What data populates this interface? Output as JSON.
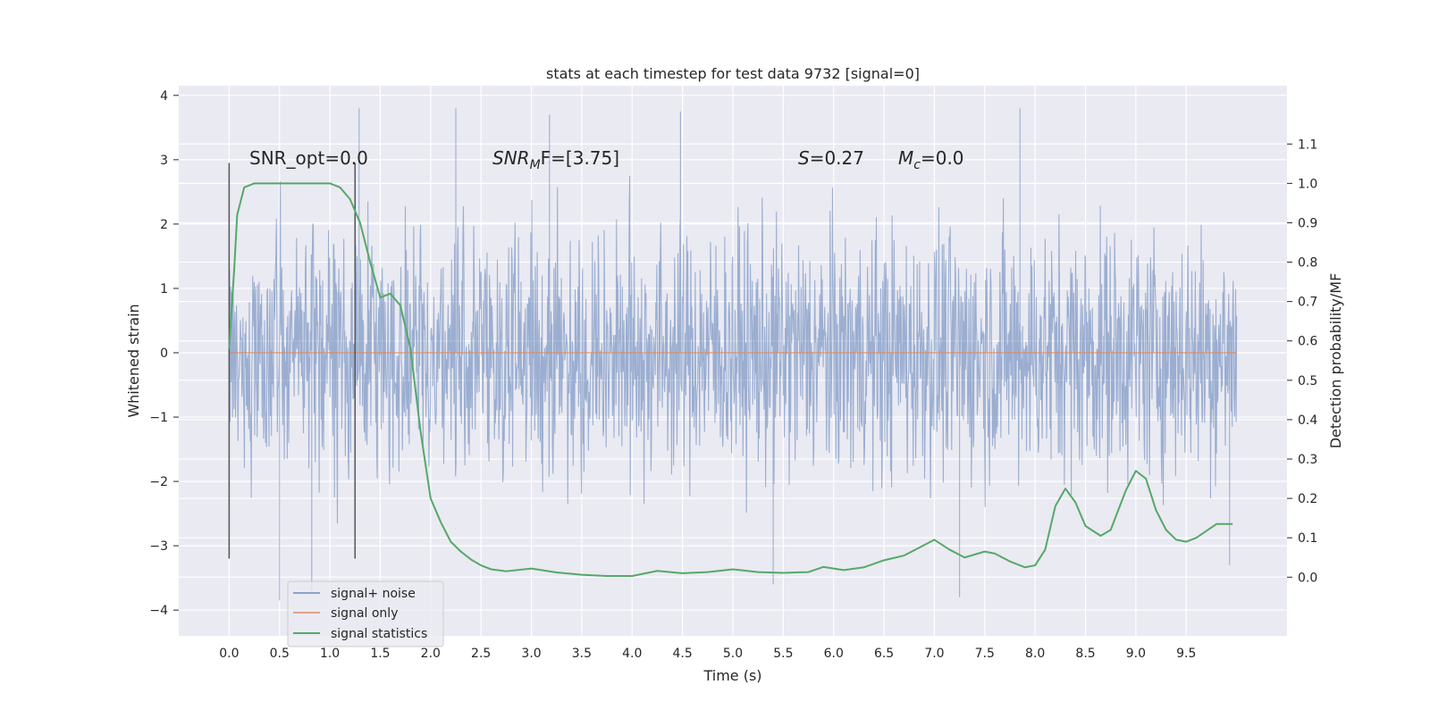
{
  "chart_data": {
    "type": "line",
    "title": "stats at each timestep for test data 9732 [signal=0]",
    "xlabel": "Time (s)",
    "ylabel": "Whitened strain",
    "y2label": "Detection probability/MF",
    "xlim": [
      -0.5,
      10.5
    ],
    "ylim": [
      -4.4,
      4.15
    ],
    "y2lim": [
      -0.149,
      1.248
    ],
    "x_ticks": [
      "0.0",
      "0.5",
      "1.0",
      "1.5",
      "2.0",
      "2.5",
      "3.0",
      "3.5",
      "4.0",
      "4.5",
      "5.0",
      "5.5",
      "6.0",
      "6.5",
      "7.0",
      "7.5",
      "8.0",
      "8.5",
      "9.0",
      "9.5"
    ],
    "y_ticks": [
      "4",
      "3",
      "2",
      "1",
      "0",
      "−1",
      "−2",
      "−3",
      "−4"
    ],
    "y2_ticks": [
      "1.1",
      "1.0",
      "0.9",
      "0.8",
      "0.7",
      "0.6",
      "0.5",
      "0.4",
      "0.3",
      "0.2",
      "0.1",
      "0.0"
    ],
    "grid": true,
    "legend_position": "lower-left",
    "annotations": {
      "snr_opt": "SNR_opt=0.0",
      "snr_mf_prefix": "SNR",
      "snr_mf_sub": "M",
      "snr_mf_suffix": "F=[3.75]",
      "s_prefix": "S",
      "s_value": "=0.27",
      "mc_prefix": "M",
      "mc_sub": "c",
      "mc_value": "=0.0"
    },
    "vlines_x": [
      0.0,
      1.25
    ],
    "series": [
      {
        "name": "signal+ noise",
        "color": "#4c72b0",
        "x_range": [
          0.0,
          10.0
        ],
        "samples": 2048,
        "y_max": 3.8,
        "y_min": -3.8,
        "peaks": [
          [
            0.5,
            -3.85
          ],
          [
            0.82,
            -3.7
          ],
          [
            1.29,
            3.8
          ],
          [
            2.25,
            3.8
          ],
          [
            3.18,
            3.7
          ],
          [
            4.48,
            3.75
          ],
          [
            7.85,
            3.8
          ],
          [
            9.93,
            -3.3
          ],
          [
            7.25,
            -3.8
          ],
          [
            5.4,
            -3.6
          ]
        ]
      },
      {
        "name": "signal only",
        "color": "#dd8452",
        "x": [
          0.0,
          10.0
        ],
        "y": [
          0.0,
          0.0
        ]
      },
      {
        "name": "signal statistics",
        "color": "#55a868",
        "axis": "right",
        "x": [
          0.0,
          0.05,
          0.08,
          0.15,
          0.25,
          0.4,
          0.6,
          0.8,
          1.0,
          1.1,
          1.2,
          1.3,
          1.4,
          1.5,
          1.6,
          1.7,
          1.8,
          1.9,
          2.0,
          2.1,
          2.2,
          2.3,
          2.4,
          2.5,
          2.6,
          2.75,
          3.0,
          3.25,
          3.5,
          3.75,
          4.0,
          4.25,
          4.5,
          4.75,
          5.0,
          5.25,
          5.5,
          5.75,
          5.9,
          6.1,
          6.3,
          6.5,
          6.7,
          6.85,
          7.0,
          7.15,
          7.3,
          7.5,
          7.6,
          7.75,
          7.9,
          8.0,
          8.1,
          8.2,
          8.3,
          8.4,
          8.5,
          8.65,
          8.75,
          8.9,
          9.0,
          9.1,
          9.2,
          9.3,
          9.4,
          9.5,
          9.6,
          9.8,
          9.96
        ],
        "y": [
          0.58,
          0.78,
          0.92,
          0.99,
          1.0,
          1.0,
          1.0,
          1.0,
          1.0,
          0.99,
          0.96,
          0.9,
          0.8,
          0.71,
          0.72,
          0.69,
          0.58,
          0.37,
          0.2,
          0.14,
          0.09,
          0.065,
          0.045,
          0.03,
          0.02,
          0.015,
          0.022,
          0.012,
          0.006,
          0.003,
          0.003,
          0.016,
          0.01,
          0.013,
          0.02,
          0.013,
          0.011,
          0.013,
          0.026,
          0.018,
          0.025,
          0.043,
          0.055,
          0.075,
          0.095,
          0.07,
          0.05,
          0.065,
          0.06,
          0.04,
          0.025,
          0.03,
          0.07,
          0.18,
          0.225,
          0.19,
          0.13,
          0.105,
          0.12,
          0.22,
          0.27,
          0.25,
          0.17,
          0.12,
          0.095,
          0.09,
          0.1,
          0.135,
          0.135
        ]
      }
    ]
  }
}
